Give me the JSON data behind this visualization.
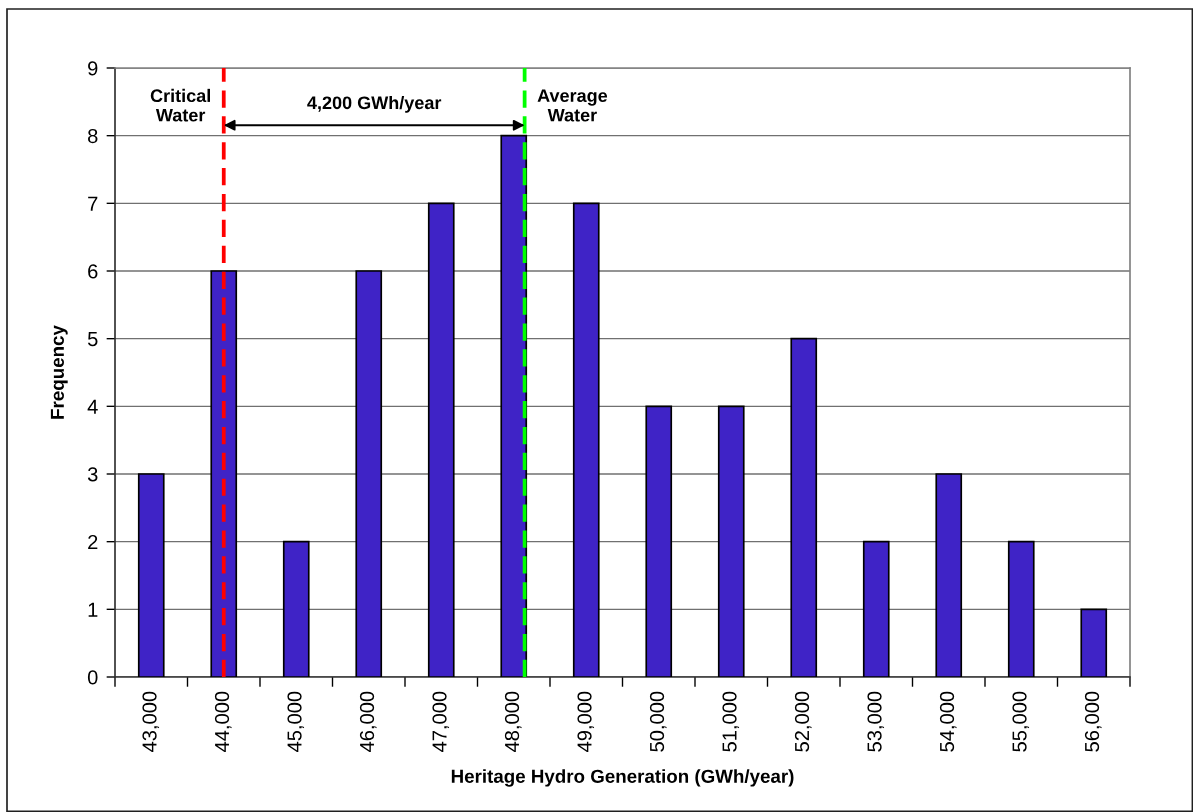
{
  "chart_data": {
    "type": "bar",
    "xlabel": "Heritage Hydro Generation (GWh/year)",
    "ylabel": "Frequency",
    "x": [
      43000,
      44000,
      45000,
      46000,
      47000,
      48000,
      49000,
      50000,
      51000,
      52000,
      53000,
      54000,
      55000,
      56000
    ],
    "values": [
      3,
      6,
      2,
      6,
      7,
      8,
      7,
      4,
      4,
      5,
      2,
      3,
      2,
      1
    ],
    "color": "#3f23c6",
    "xlim": [
      42500,
      56500
    ],
    "xticks": [
      {
        "value": 42500,
        "label": null
      },
      {
        "value": 43000,
        "label": "43,000"
      },
      {
        "value": 43500,
        "label": null
      },
      {
        "value": 44000,
        "label": "44,000"
      },
      {
        "value": 44500,
        "label": null
      },
      {
        "value": 45000,
        "label": "45,000"
      },
      {
        "value": 45500,
        "label": null
      },
      {
        "value": 46000,
        "label": "46,000"
      },
      {
        "value": 46500,
        "label": null
      },
      {
        "value": 47000,
        "label": "47,000"
      },
      {
        "value": 47500,
        "label": null
      },
      {
        "value": 48000,
        "label": "48,000"
      },
      {
        "value": 48500,
        "label": null
      },
      {
        "value": 49000,
        "label": "49,000"
      },
      {
        "value": 49500,
        "label": null
      },
      {
        "value": 50000,
        "label": "50,000"
      },
      {
        "value": 50500,
        "label": null
      },
      {
        "value": 51000,
        "label": "51,000"
      },
      {
        "value": 51500,
        "label": null
      },
      {
        "value": 52000,
        "label": "52,000"
      },
      {
        "value": 52500,
        "label": null
      },
      {
        "value": 53000,
        "label": "53,000"
      },
      {
        "value": 53500,
        "label": null
      },
      {
        "value": 54000,
        "label": "54,000"
      },
      {
        "value": 54500,
        "label": null
      },
      {
        "value": 55000,
        "label": "55,000"
      },
      {
        "value": 55500,
        "label": null
      },
      {
        "value": 56000,
        "label": "56,000"
      },
      {
        "value": 56500,
        "label": null
      }
    ],
    "ylim": [
      0,
      9
    ],
    "yticks": [
      0,
      1,
      2,
      3,
      4,
      5,
      6,
      7,
      8,
      9
    ],
    "grid": "y",
    "ref_lines": [
      {
        "axis": "x",
        "value": 44000,
        "label": "Critical\nWater",
        "color": "#ff0000",
        "line_style": "dashed"
      },
      {
        "axis": "x",
        "value": 48150,
        "label": "Average\nWater",
        "color": "#00ff00",
        "line_style": "dashed"
      }
    ],
    "annotations": [
      "4,200 GWh/year"
    ]
  }
}
